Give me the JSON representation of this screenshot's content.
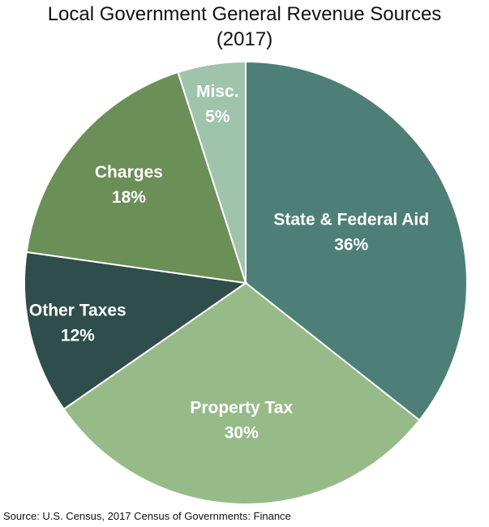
{
  "chart_data": {
    "type": "pie",
    "title_line1": "Local Government General Revenue Sources",
    "title_line2": "(2017)",
    "slices": [
      {
        "label": "State & Federal Aid",
        "value": 36,
        "value_label": "36%",
        "color": "#4e7f76"
      },
      {
        "label": "Property Tax",
        "value": 30,
        "value_label": "30%",
        "color": "#96bb88"
      },
      {
        "label": "Other Taxes",
        "value": 12,
        "value_label": "12%",
        "color": "#2e4d4b"
      },
      {
        "label": "Charges",
        "value": 18,
        "value_label": "18%",
        "color": "#6a8f57"
      },
      {
        "label": "Misc.",
        "value": 5,
        "value_label": "5%",
        "color": "#a0c3ac"
      }
    ],
    "start_angle_deg": 0,
    "direction": "clockwise",
    "slice_border_color": "#ffffff",
    "label_text_color": "#ffffff"
  },
  "source": "Source:  U.S. Census, 2017 Census of Governments: Finance"
}
